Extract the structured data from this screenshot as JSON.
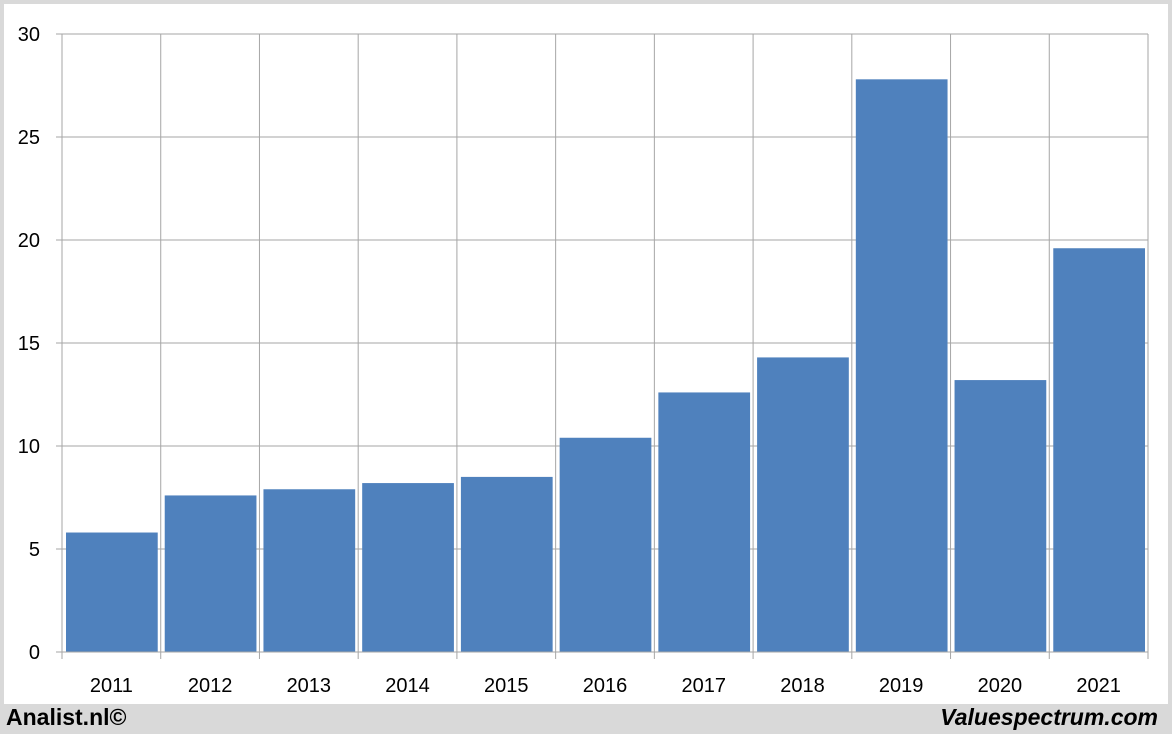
{
  "chart_data": {
    "type": "bar",
    "categories": [
      "2011",
      "2012",
      "2013",
      "2014",
      "2015",
      "2016",
      "2017",
      "2018",
      "2019",
      "2020",
      "2021"
    ],
    "values": [
      5.8,
      7.6,
      7.9,
      8.2,
      8.5,
      10.4,
      12.6,
      14.3,
      27.8,
      13.2,
      19.6
    ],
    "ylim": [
      0,
      30
    ],
    "yticks": [
      0,
      5,
      10,
      15,
      20,
      25,
      30
    ],
    "grid": true,
    "bar_color": "#4f81bd",
    "grid_color": "#a6a6a6",
    "title": "",
    "xlabel": "",
    "ylabel": ""
  },
  "footer": {
    "left": "Analist.nl©",
    "right": "Valuespectrum.com"
  }
}
